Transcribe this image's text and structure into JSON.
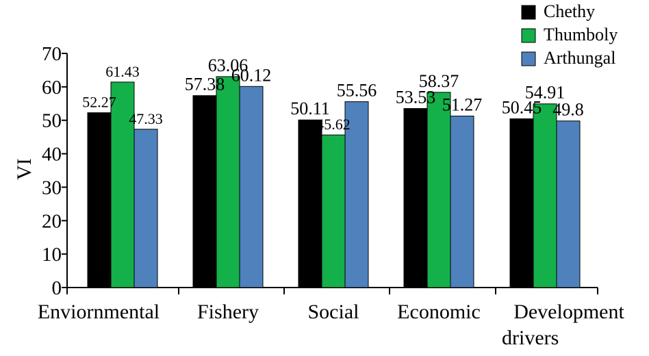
{
  "chart_data": {
    "type": "bar",
    "categories": [
      [
        "Enviornmental"
      ],
      [
        "Fishery"
      ],
      [
        "Social"
      ],
      [
        "Economic"
      ],
      [
        "Development",
        "drivers"
      ]
    ],
    "series": [
      {
        "name": "Chethy",
        "color": "#000000",
        "values": [
          52.27,
          57.38,
          50.11,
          53.53,
          50.45
        ],
        "labels": [
          "52.27",
          "57.38",
          "50.11",
          "53.53",
          "50.45"
        ]
      },
      {
        "name": "Thumboly",
        "color": "#14b04a",
        "values": [
          61.43,
          63.06,
          45.62,
          58.37,
          54.91
        ],
        "labels": [
          "61.43",
          "63.06",
          "45.62",
          "58.37",
          "54.91"
        ]
      },
      {
        "name": "Arthungal",
        "color": "#4f81bd",
        "values": [
          47.33,
          60.12,
          55.56,
          51.27,
          49.8
        ],
        "labels": [
          "47.33",
          "60.12",
          "55.56",
          "51.27",
          "49.8"
        ]
      }
    ],
    "ylabel": "VI",
    "ylim": [
      0,
      70
    ],
    "yticks": [
      "0",
      "10",
      "20",
      "30",
      "40",
      "50",
      "60",
      "70"
    ],
    "grid": false,
    "legend_position": "top-right"
  }
}
